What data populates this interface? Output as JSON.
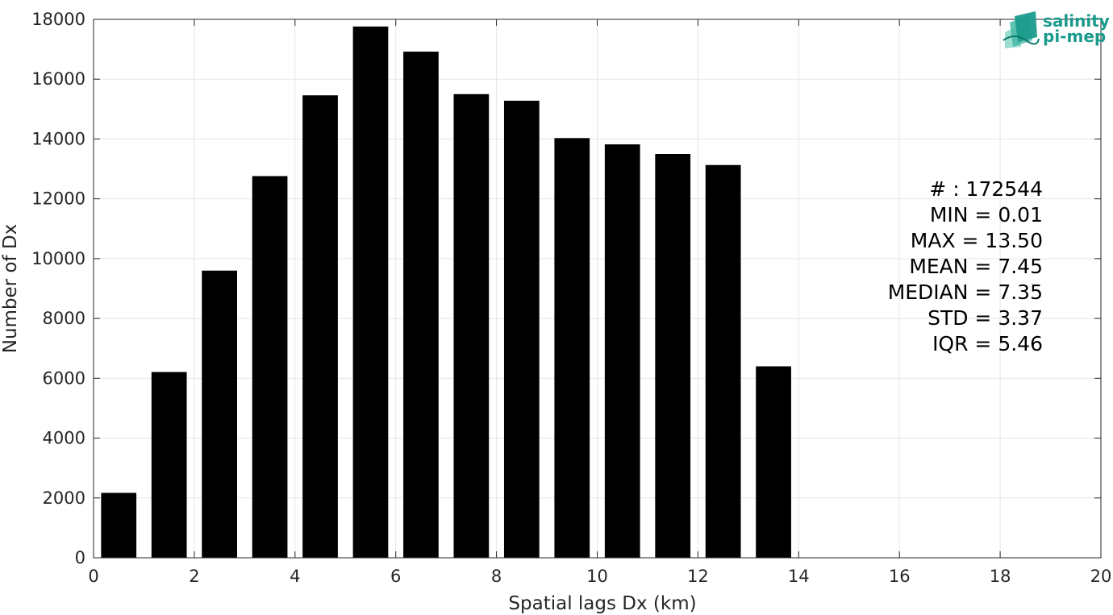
{
  "chart_data": {
    "type": "bar",
    "title": "",
    "xlabel": "Spatial lags Dx (km)",
    "ylabel": "Number of Dx",
    "xlim": [
      0,
      20
    ],
    "ylim": [
      0,
      18000
    ],
    "xticks": [
      0,
      2,
      4,
      6,
      8,
      10,
      12,
      14,
      16,
      18,
      20
    ],
    "yticks": [
      0,
      2000,
      4000,
      6000,
      8000,
      10000,
      12000,
      14000,
      16000,
      18000
    ],
    "grid": true,
    "bar_width": 0.7,
    "x": [
      0.5,
      1.5,
      2.5,
      3.5,
      4.5,
      5.5,
      6.5,
      7.5,
      8.5,
      9.5,
      10.5,
      11.5,
      12.5,
      13.5
    ],
    "values": [
      2170,
      6210,
      9600,
      12760,
      15460,
      17760,
      16920,
      15500,
      15280,
      14030,
      13820,
      13500,
      13130,
      6400
    ],
    "bar_color": "#000000",
    "stats": [
      "# : 172544",
      "MIN = 0.01",
      "MAX =  13.50",
      "MEAN = 7.45",
      "MEDIAN = 7.35",
      "STD = 3.37",
      "IQR = 5.46"
    ]
  },
  "logo": {
    "line1": "salinity",
    "line2": "pi-mep",
    "color": "#1a9b8c"
  }
}
